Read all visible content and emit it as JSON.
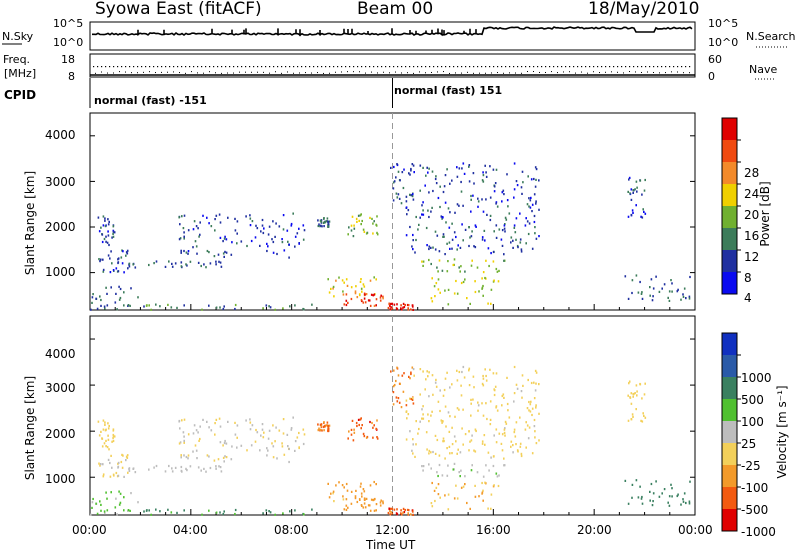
{
  "header": {
    "site": "Syowa East (fitACF)",
    "beam": "Beam 00",
    "date": "18/May/2010"
  },
  "left_labels": {
    "nsky": "N.Sky",
    "freq": "Freq.",
    "mhz": "[MHz]",
    "cpid": "CPID"
  },
  "right_labels": {
    "nsearch": "N.Search",
    "nave": "Nave"
  },
  "noise_ticks_left": [
    "10^5",
    "10^0"
  ],
  "noise_ticks_right": [
    "10^5",
    "10^0"
  ],
  "freq_ticks": [
    "18",
    "8"
  ],
  "nave_ticks": [
    "60",
    "0"
  ],
  "cpid_segments": [
    "normal (fast) -151",
    "normal (fast) 151"
  ],
  "ylabel": "Slant Range [km]",
  "y_ticks": [
    "4000",
    "3000",
    "2000",
    "1000"
  ],
  "x_ticks": [
    "00:00",
    "04:00",
    "08:00",
    "12:00",
    "16:00",
    "20:00",
    "00:00"
  ],
  "xlabel": "Time UT",
  "power_bar": {
    "label": "Power [dB]",
    "ticks": [
      "28",
      "24",
      "20",
      "16",
      "12",
      "8",
      "4"
    ],
    "colors": [
      "#e00000",
      "#f04a10",
      "#f38a2a",
      "#f0d000",
      "#70b030",
      "#3c7c5a",
      "#2030a0",
      "#0a0af0"
    ]
  },
  "velocity_bar": {
    "label": "Velocity [m s⁻¹]",
    "ticks": [
      "1000",
      "500",
      "100",
      "25",
      "-25",
      "-100",
      "-500",
      "-1000"
    ],
    "colors": [
      "#1030c0",
      "#2a5aa8",
      "#3a8060",
      "#50c030",
      "#bdbdbd",
      "#f3d05a",
      "#f39a2a",
      "#f35a10",
      "#e00000"
    ]
  },
  "chart_data": {
    "type": "heatmap",
    "x_range_hours": [
      0,
      24
    ],
    "y_range_km": [
      180,
      4500
    ],
    "echo_regions": [
      {
        "t": [
          0.0,
          2.0
        ],
        "r": [
          180,
          700
        ],
        "power_db": 8,
        "velocity": 40
      },
      {
        "t": [
          0.3,
          1.5
        ],
        "r": [
          1000,
          1500
        ],
        "power_db": 6,
        "velocity": -30
      },
      {
        "t": [
          0.3,
          1.0
        ],
        "r": [
          1600,
          2250
        ],
        "power_db": 6,
        "velocity": -60
      },
      {
        "t": [
          1.5,
          5.5
        ],
        "r": [
          1100,
          1250
        ],
        "power_db": 8,
        "velocity": 5
      },
      {
        "t": [
          2.0,
          8.8
        ],
        "r": [
          180,
          300
        ],
        "power_db": 10,
        "velocity": 150
      },
      {
        "t": [
          3.5,
          8.5
        ],
        "r": [
          1300,
          2300
        ],
        "power_db": 6,
        "velocity": -20
      },
      {
        "t": [
          9.0,
          9.5
        ],
        "r": [
          2000,
          2200
        ],
        "power_db": 8,
        "velocity": -600
      },
      {
        "t": [
          9.2,
          11.6
        ],
        "r": [
          450,
          900
        ],
        "power_db": 18,
        "velocity": -150
      },
      {
        "t": [
          10.0,
          11.6
        ],
        "r": [
          250,
          600
        ],
        "power_db": 26,
        "velocity": -250
      },
      {
        "t": [
          10.2,
          11.4
        ],
        "r": [
          1800,
          2300
        ],
        "power_db": 14,
        "velocity": -700
      },
      {
        "t": [
          11.8,
          12.8
        ],
        "r": [
          180,
          320
        ],
        "power_db": 30,
        "velocity": -800
      },
      {
        "t": [
          11.9,
          12.8
        ],
        "r": [
          2500,
          3400
        ],
        "power_db": 6,
        "velocity": -600
      },
      {
        "t": [
          12.8,
          16.5
        ],
        "r": [
          1000,
          1300
        ],
        "power_db": 14,
        "velocity": 10
      },
      {
        "t": [
          13.5,
          16.2
        ],
        "r": [
          300,
          900
        ],
        "power_db": 16,
        "velocity": -100
      },
      {
        "t": [
          12.5,
          17.8
        ],
        "r": [
          1400,
          3400
        ],
        "power_db": 6,
        "velocity": -40
      },
      {
        "t": [
          21.2,
          23.9
        ],
        "r": [
          350,
          950
        ],
        "power_db": 8,
        "velocity": 300
      },
      {
        "t": [
          21.3,
          22.0
        ],
        "r": [
          2200,
          3100
        ],
        "power_db": 6,
        "velocity": -50
      }
    ],
    "noise_search_shift_hour": 15.6,
    "cpid_change_hour": 12.0
  }
}
